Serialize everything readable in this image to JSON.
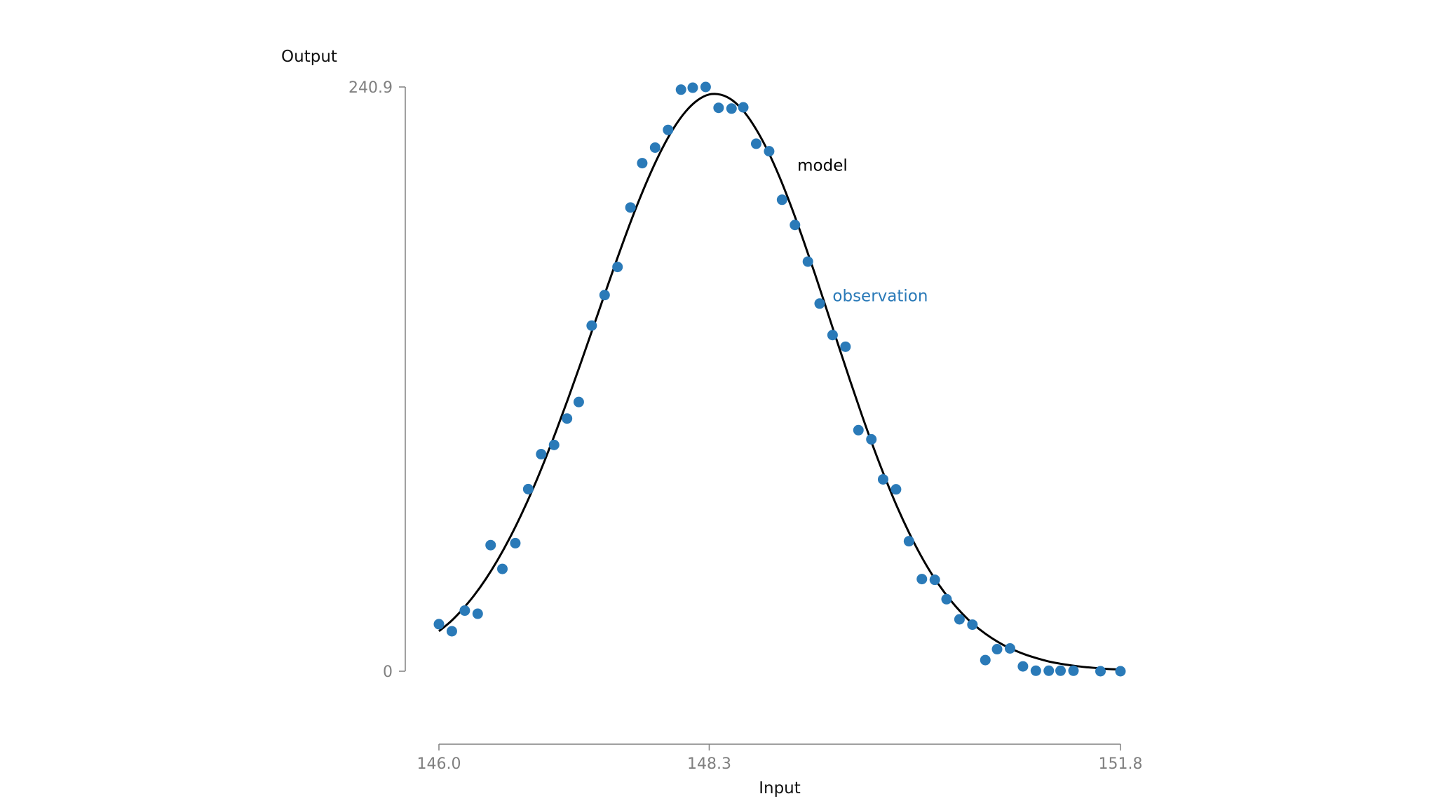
{
  "chart_data": {
    "type": "scatter",
    "xlabel": "Input",
    "ylabel": "Output",
    "xlim": [
      146.0,
      151.8
    ],
    "ylim": [
      0,
      240.9
    ],
    "x_ticks": [
      "146.0",
      "148.3",
      "151.8"
    ],
    "y_ticks": [
      "0",
      "240.9"
    ],
    "grid": false,
    "legend": "none",
    "colors": {
      "observation": "#2a7ab8",
      "model": "#000000",
      "axis": "#808080"
    },
    "annotations": [
      {
        "text": "model",
        "series": "model",
        "x": 149.05,
        "y": 206.4
      },
      {
        "text": "observation",
        "series": "observation",
        "x": 149.35,
        "y": 152.6
      }
    ],
    "series": [
      {
        "name": "observation",
        "type": "scatter",
        "x": [
          146.0,
          146.11,
          146.22,
          146.33,
          146.44,
          146.54,
          146.65,
          146.76,
          146.87,
          146.98,
          147.09,
          147.19,
          147.3,
          147.41,
          147.52,
          147.63,
          147.73,
          147.84,
          147.95,
          148.06,
          148.16,
          148.27,
          148.38,
          148.49,
          148.59,
          148.7,
          148.81,
          148.92,
          149.03,
          149.14,
          149.24,
          149.35,
          149.46,
          149.57,
          149.68,
          149.78,
          149.89,
          150.0,
          150.11,
          150.22,
          150.32,
          150.43,
          150.54,
          150.65,
          150.75,
          150.86,
          150.97,
          151.08,
          151.19,
          151.29,
          151.4,
          151.63,
          151.8
        ],
        "y": [
          19.4,
          16.5,
          25.0,
          23.7,
          52.0,
          42.2,
          52.8,
          75.1,
          89.5,
          93.3,
          104.2,
          111.0,
          142.5,
          155.1,
          166.7,
          191.2,
          209.5,
          215.9,
          223.2,
          239.8,
          240.6,
          240.9,
          232.3,
          232.0,
          232.5,
          217.5,
          214.4,
          194.4,
          184.0,
          168.9,
          151.6,
          138.6,
          133.8,
          99.4,
          95.6,
          79.1,
          75.0,
          53.6,
          38.0,
          37.7,
          29.7,
          21.4,
          19.2,
          4.6,
          9.1,
          9.4,
          2.0,
          0.2,
          0.2,
          0.2,
          0.2,
          0.0,
          0.0
        ]
      },
      {
        "name": "model",
        "type": "line",
        "x": [
          146.0,
          146.1,
          146.2,
          146.3,
          146.4,
          146.5,
          146.6,
          146.7,
          146.8,
          146.9,
          147.0,
          147.1,
          147.2,
          147.3,
          147.4,
          147.5,
          147.6,
          147.7,
          147.8,
          147.9,
          148.0,
          148.1,
          148.2,
          148.3,
          148.4,
          148.5,
          148.6,
          148.7,
          148.8,
          148.9,
          149.0,
          149.1,
          149.2,
          149.3,
          149.4,
          149.5,
          149.6,
          149.7,
          149.8,
          149.9,
          150.0,
          150.1,
          150.2,
          150.3,
          150.4,
          150.5,
          150.6,
          150.7,
          150.8,
          150.9,
          151.0,
          151.1,
          151.2,
          151.3,
          151.4,
          151.5,
          151.6,
          151.7,
          151.8
        ],
        "y": [
          16.5,
          20.5,
          25.5,
          31.3,
          38.1,
          45.9,
          54.7,
          64.5,
          75.2,
          86.9,
          99.4,
          112.5,
          126.1,
          140.0,
          154.0,
          167.8,
          181.2,
          193.8,
          205.3,
          215.5,
          224.1,
          230.8,
          235.4,
          237.8,
          237.7,
          235.3,
          230.5,
          223.4,
          214.4,
          203.6,
          191.3,
          177.9,
          163.8,
          149.1,
          134.3,
          119.7,
          105.5,
          92.0,
          79.4,
          67.7,
          57.2,
          47.8,
          39.6,
          32.6,
          26.6,
          21.5,
          17.3,
          13.8,
          10.9,
          8.6,
          6.7,
          5.2,
          3.9,
          3.0,
          2.3,
          1.7,
          1.3,
          0.9,
          0.7
        ]
      }
    ]
  }
}
